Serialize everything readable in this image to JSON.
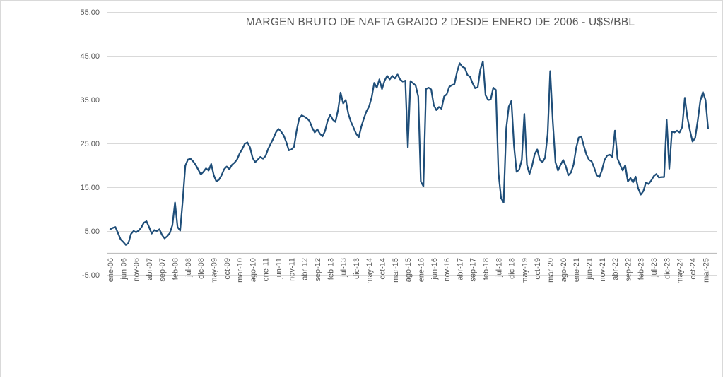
{
  "chart": {
    "colors": {
      "line": "#1f4e79",
      "gridline": "#d9d9d9",
      "axis_line": "#bfbfbf",
      "tick_label": "#595959",
      "title": "#595959",
      "background": "#ffffff",
      "border": "#d9d9d9"
    }
  },
  "chart_data": {
    "type": "line",
    "title": "MARGEN BRUTO DE NAFTA GRADO 2 DESDE ENERO DE 2006 - U$S/BBL",
    "x_unit": "month",
    "x_start": "ene-06",
    "x_end": "abr-25",
    "x_tick_every_n_months": 5,
    "x_tick_labels": [
      "ene-06",
      "jun-06",
      "nov-06",
      "abr-07",
      "sep-07",
      "feb-08",
      "jul-08",
      "dic-08",
      "may-09",
      "oct-09",
      "mar-10",
      "ago-10",
      "ene-11",
      "jun-11",
      "nov-11",
      "abr-12",
      "sep-12",
      "feb-13",
      "jul-13",
      "dic-13",
      "may-14",
      "oct-14",
      "mar-15",
      "ago-15",
      "ene-16",
      "jun-16",
      "nov-16",
      "abr-17",
      "sep-17",
      "feb-18",
      "jul-18",
      "dic-18",
      "may-19",
      "oct-19",
      "mar-20",
      "ago-20",
      "ene-21",
      "jun-21",
      "nov-21",
      "abr-22",
      "sep-22",
      "feb-23",
      "jul-23",
      "dic-23",
      "may-24",
      "oct-24",
      "mar-25"
    ],
    "y_tick_labels": [
      "55.00",
      "45.00",
      "35.00",
      "25.00",
      "15.00",
      "5.00",
      "-5.00"
    ],
    "y_ticks": [
      55,
      45,
      35,
      25,
      15,
      5,
      -5
    ],
    "ylim": [
      -5,
      55
    ],
    "grid": "horizontal",
    "legend": "none",
    "values": [
      5.5,
      5.8,
      6.0,
      4.6,
      3.2,
      2.6,
      1.9,
      2.3,
      4.4,
      5.1,
      4.8,
      5.2,
      5.9,
      7.0,
      7.3,
      6.0,
      4.5,
      5.3,
      5.1,
      5.5,
      4.2,
      3.4,
      3.9,
      4.6,
      6.4,
      11.6,
      6.0,
      5.2,
      12.0,
      20.0,
      21.4,
      21.6,
      21.0,
      20.2,
      19.1,
      18.0,
      18.6,
      19.4,
      18.9,
      20.4,
      17.8,
      16.4,
      16.8,
      17.8,
      19.2,
      19.8,
      19.2,
      20.2,
      20.7,
      21.4,
      22.8,
      23.8,
      25.0,
      25.3,
      24.2,
      21.8,
      20.8,
      21.4,
      22.0,
      21.6,
      22.2,
      23.8,
      25.0,
      26.2,
      27.6,
      28.4,
      27.8,
      26.9,
      25.4,
      23.5,
      23.7,
      24.3,
      28.0,
      30.8,
      31.5,
      31.2,
      30.8,
      30.2,
      28.7,
      27.6,
      28.3,
      27.3,
      26.7,
      27.9,
      30.3,
      31.6,
      30.5,
      30.0,
      32.7,
      36.7,
      34.2,
      35.0,
      31.8,
      30.0,
      28.7,
      27.3,
      26.5,
      28.9,
      30.8,
      32.4,
      33.5,
      35.6,
      38.9,
      37.8,
      39.7,
      37.5,
      39.4,
      40.5,
      39.7,
      40.5,
      39.9,
      40.8,
      39.7,
      39.2,
      39.4,
      24.2,
      39.3,
      38.8,
      38.3,
      35.8,
      16.4,
      15.3,
      37.5,
      37.8,
      37.4,
      33.8,
      32.7,
      33.4,
      33.0,
      35.8,
      36.3,
      38.0,
      38.4,
      38.6,
      41.4,
      43.4,
      42.6,
      42.3,
      40.7,
      40.3,
      38.8,
      37.7,
      37.9,
      42.0,
      43.8,
      36.1,
      35.0,
      35.1,
      37.8,
      37.3,
      18.4,
      12.6,
      11.6,
      28.5,
      33.5,
      34.8,
      24.5,
      18.6,
      19.1,
      21.3,
      31.8,
      20.2,
      18.1,
      20.0,
      22.7,
      23.7,
      21.3,
      20.8,
      21.8,
      27.2,
      41.6,
      30.0,
      20.8,
      18.9,
      20.2,
      21.3,
      19.9,
      17.8,
      18.4,
      20.2,
      24.0,
      26.4,
      26.7,
      24.5,
      22.5,
      21.3,
      21.0,
      19.5,
      17.8,
      17.4,
      19.0,
      21.3,
      22.3,
      22.5,
      22.0,
      28.0,
      21.6,
      20.2,
      18.9,
      20.1,
      16.4,
      17.2,
      16.2,
      17.5,
      14.8,
      13.4,
      14.2,
      16.2,
      15.8,
      16.6,
      17.6,
      18.1,
      17.3,
      17.4,
      17.4,
      30.5,
      19.3,
      27.8,
      27.6,
      28.0,
      27.6,
      28.8,
      35.5,
      31.0,
      28.0,
      25.5,
      26.3,
      30.3,
      34.8,
      36.8,
      35.0,
      28.5
    ]
  }
}
